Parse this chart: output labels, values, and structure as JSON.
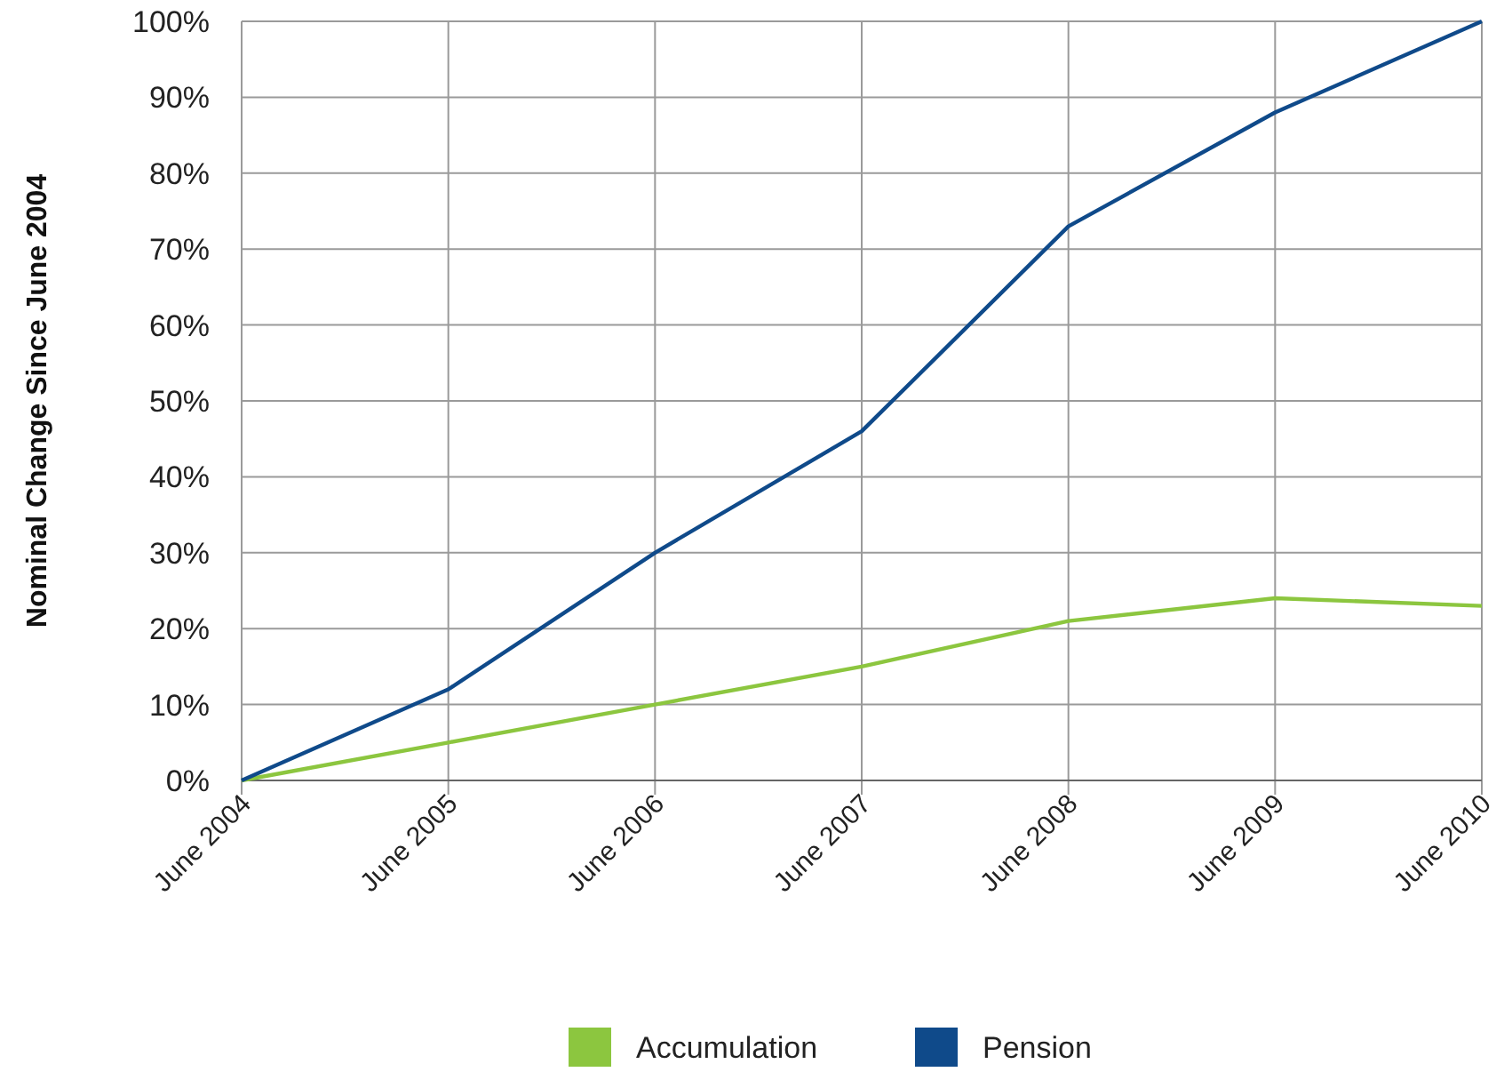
{
  "chart_data": {
    "type": "line",
    "ylabel": "Nominal Change Since June 2004",
    "categories": [
      "June 2004",
      "June 2005",
      "June 2006",
      "June 2007",
      "June 2008",
      "June 2009",
      "June 2010"
    ],
    "series": [
      {
        "name": "Accumulation",
        "color": "#8cc63f",
        "values": [
          0,
          5,
          10,
          15,
          21,
          24,
          23
        ]
      },
      {
        "name": "Pension",
        "color": "#0f4a8a",
        "values": [
          0,
          12,
          30,
          46,
          73,
          88,
          100
        ]
      }
    ],
    "ylim": [
      0,
      100
    ],
    "yticks": [
      {
        "value": 0,
        "label": "0%"
      },
      {
        "value": 10,
        "label": "10%"
      },
      {
        "value": 20,
        "label": "20%"
      },
      {
        "value": 30,
        "label": "30%"
      },
      {
        "value": 40,
        "label": "40%"
      },
      {
        "value": 50,
        "label": "50%"
      },
      {
        "value": 60,
        "label": "60%"
      },
      {
        "value": 70,
        "label": "70%"
      },
      {
        "value": 80,
        "label": "80%"
      },
      {
        "value": 90,
        "label": "90%"
      },
      {
        "value": 100,
        "label": "100%"
      }
    ],
    "grid": true,
    "legend": "bottom",
    "marker": "none",
    "line_style": "solid"
  }
}
